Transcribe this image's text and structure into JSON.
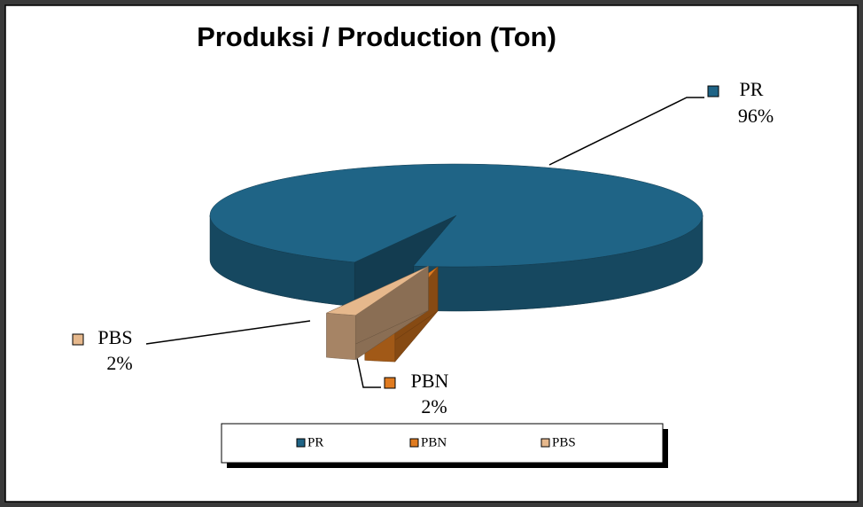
{
  "chart_data": {
    "type": "pie",
    "title": "Produksi / Production (Ton)",
    "categories": [
      "PR",
      "PBN",
      "PBS"
    ],
    "values": [
      96,
      2,
      2
    ],
    "value_labels": [
      "96%",
      "2%",
      "2%"
    ],
    "colors": [
      "#1f6486",
      "#e07b20",
      "#e6b88c"
    ],
    "legend": "bottom"
  }
}
